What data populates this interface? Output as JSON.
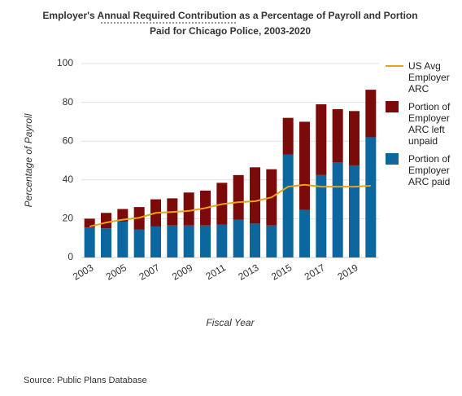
{
  "chart_data": {
    "type": "bar",
    "stacked": true,
    "title_lines": [
      "Employer's Annual Required Contribution as a Percentage of Payroll and Portion",
      "Paid for Chicago Police, 2003-2020"
    ],
    "x_label": "Fiscal Year",
    "y_label": "Percentage of Payroll",
    "categories": [
      "2003",
      null,
      "2005",
      null,
      "2007",
      null,
      "2009",
      null,
      "2011",
      null,
      "2013",
      null,
      "2015",
      null,
      "2017",
      null,
      "2019",
      null
    ],
    "series": [
      {
        "name": "US Avg Employer ARC",
        "type": "line",
        "color": "#e8a317",
        "values": [
          16,
          18,
          19.5,
          20.5,
          23,
          23.5,
          24,
          25.5,
          27.5,
          28.5,
          29,
          31,
          36.5,
          37.5,
          36.5,
          36.5,
          36.5,
          37
        ]
      },
      {
        "name": "Portion of Employer ARC left unpaid",
        "type": "bar",
        "color": "#7b0a0a",
        "values": [
          4.5,
          8,
          6.5,
          11.5,
          14,
          14,
          17,
          18,
          21.5,
          23,
          29,
          29,
          19,
          45.5,
          36.5,
          27.5,
          28,
          24.5
        ]
      },
      {
        "name": "Portion of Employer ARC paid",
        "type": "bar",
        "color": "#0b679e",
        "values": [
          15.5,
          15,
          18.5,
          14.5,
          16,
          16.5,
          16.5,
          16.5,
          17,
          19.5,
          17.5,
          16.5,
          53,
          24.5,
          42.5,
          49,
          47.5,
          62
        ]
      }
    ],
    "ylim": [
      0,
      100
    ],
    "yticks": [
      0,
      20,
      40,
      60,
      80,
      100
    ],
    "grid": true
  },
  "source": "Source: Public Plans Database"
}
